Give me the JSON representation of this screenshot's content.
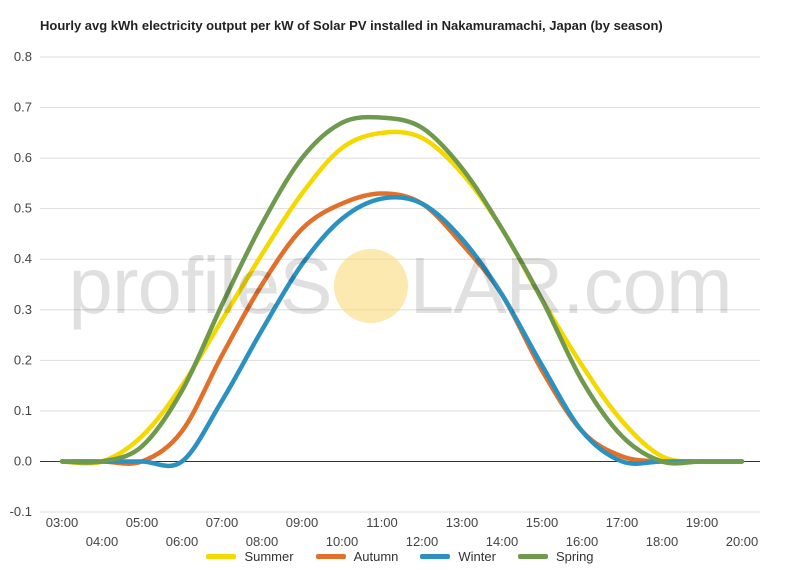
{
  "chart_data": {
    "type": "line",
    "title": "Hourly avg kWh electricity output per kW of Solar PV installed in Nakamuramachi, Japan (by season)",
    "xlabel": "",
    "ylabel": "",
    "ylim": [
      -0.1,
      0.8
    ],
    "yticks": [
      "-0.1",
      "0.0",
      "0.1",
      "0.2",
      "0.3",
      "0.4",
      "0.5",
      "0.6",
      "0.7",
      "0.8"
    ],
    "x": [
      "03:00",
      "04:00",
      "05:00",
      "06:00",
      "07:00",
      "08:00",
      "09:00",
      "10:00",
      "11:00",
      "12:00",
      "13:00",
      "14:00",
      "15:00",
      "16:00",
      "17:00",
      "18:00",
      "19:00",
      "20:00"
    ],
    "grid": true,
    "legend_position": "bottom",
    "series": [
      {
        "name": "Summer",
        "color": "#f5d800",
        "values": [
          0.0,
          0.0,
          0.05,
          0.15,
          0.28,
          0.41,
          0.53,
          0.62,
          0.65,
          0.64,
          0.57,
          0.46,
          0.32,
          0.19,
          0.08,
          0.01,
          0.0,
          0.0
        ]
      },
      {
        "name": "Autumn",
        "color": "#e0702a",
        "values": [
          0.0,
          0.0,
          0.0,
          0.06,
          0.21,
          0.35,
          0.46,
          0.51,
          0.53,
          0.51,
          0.43,
          0.33,
          0.18,
          0.06,
          0.01,
          0.0,
          0.0,
          0.0
        ]
      },
      {
        "name": "Winter",
        "color": "#2a91c0",
        "values": [
          0.0,
          0.0,
          0.0,
          0.0,
          0.12,
          0.26,
          0.39,
          0.48,
          0.52,
          0.51,
          0.44,
          0.33,
          0.19,
          0.06,
          0.0,
          0.0,
          0.0,
          0.0
        ]
      },
      {
        "name": "Spring",
        "color": "#6f9a4e",
        "values": [
          0.0,
          0.0,
          0.03,
          0.14,
          0.31,
          0.47,
          0.6,
          0.67,
          0.68,
          0.66,
          0.58,
          0.46,
          0.32,
          0.16,
          0.05,
          0.0,
          0.0,
          0.0
        ]
      }
    ]
  },
  "watermark": {
    "left": "profileS",
    "right": "LAR.com"
  }
}
